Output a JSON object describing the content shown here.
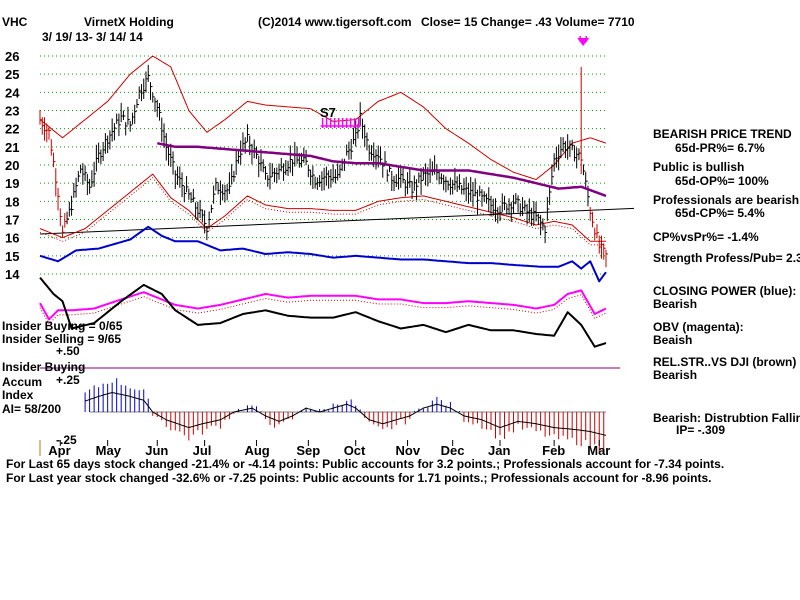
{
  "header": {
    "ticker": "VHC",
    "company": "VirnetX Holding",
    "date_range": "3/ 19/ 13- 3/ 14/ 14",
    "source": "(C)2014 www.tigersoft.com",
    "quote": "Close=  15  Change= .43 Volume= 7710"
  },
  "signal_label": "S7",
  "left_labels": {
    "insider_buying_line1": "Insider Buying = 0/65",
    "insider_selling": "Insider Selling = 9/65",
    "plus_50": "+.50",
    "insider_buying": "Insider Buying",
    "accum": "Accum",
    "plus_25": "+.25",
    "index": "Index",
    "ai": "AI= 58/200",
    "minus_25": "-.25"
  },
  "right_panel": {
    "trend_title": "BEARISH PRICE TREND",
    "pr": "65d-PR%= 6.7%",
    "public": "Public is bullish",
    "op": "65d-OP%= 100%",
    "professionals": "Professionals are bearish",
    "cp": "65d-CP%= 5.4%",
    "cpvspr": "CP%vsPr%= -1.4%",
    "strength": "Strength Profess/Pub= 2.3",
    "closing_power": "CLOSING POWER (blue):",
    "closing_power_val": "Bearish",
    "obv": "OBV (magenta):",
    "obv_val": "Beaish",
    "relstr": "REL.STR..VS DJI (brown)",
    "relstr_val": "Bearish",
    "dist": "Bearish: Distrubtion Falling",
    "ip": "IP= -.309"
  },
  "footer": {
    "line1": "For Last 65 days stock changed -21.4% or -4.14 points:  Public accounts for  3.2 points.;  Professionals account for -7.34 points.",
    "line2": "For Last year stock changed -32.6% or -7.25 points:  Public accounts for  1.71 points.;  Professionals account for -8.96 points."
  },
  "colors": {
    "price_bars": "#000000",
    "bollinger": "#cc0000",
    "moving_avg": "#800080",
    "closing_power": "#0000cc",
    "obv": "#ff00ff",
    "relstr": "#000000",
    "accum_pos": "#0000cc",
    "accum_neg": "#cc0000",
    "grid": "#00a000",
    "trendline": "#000000"
  },
  "chart_data": {
    "type": "line",
    "ylim": [
      13,
      27
    ],
    "yticks": [
      14,
      15,
      16,
      17,
      18,
      19,
      20,
      21,
      22,
      23,
      24,
      25,
      26
    ],
    "month_labels": [
      "Apr",
      "May",
      "Jun",
      "Jul",
      "Aug",
      "Sep",
      "Oct",
      "Nov",
      "Dec",
      "Jan",
      "Feb",
      "Mar"
    ],
    "month_index": [
      9,
      30,
      52,
      73,
      96,
      119,
      140,
      163,
      183,
      204,
      228,
      248
    ],
    "n_bars": 252,
    "price_keypoints": [
      [
        0,
        22.5
      ],
      [
        4,
        21.8
      ],
      [
        8,
        18.5
      ],
      [
        10,
        16.2
      ],
      [
        14,
        17.8
      ],
      [
        18,
        19.8
      ],
      [
        22,
        18.8
      ],
      [
        26,
        20.5
      ],
      [
        30,
        21.5
      ],
      [
        36,
        22.6
      ],
      [
        40,
        22.2
      ],
      [
        44,
        24.0
      ],
      [
        48,
        24.8
      ],
      [
        52,
        23.2
      ],
      [
        56,
        21.0
      ],
      [
        60,
        19.5
      ],
      [
        66,
        18.3
      ],
      [
        70,
        17.5
      ],
      [
        74,
        16.6
      ],
      [
        78,
        18.8
      ],
      [
        84,
        18.6
      ],
      [
        88,
        20.6
      ],
      [
        92,
        21.4
      ],
      [
        97,
        20.3
      ],
      [
        100,
        19.3
      ],
      [
        106,
        19.7
      ],
      [
        112,
        20.3
      ],
      [
        118,
        20.1
      ],
      [
        122,
        19.2
      ],
      [
        127,
        19.4
      ],
      [
        132,
        19.3
      ],
      [
        136,
        20.6
      ],
      [
        140,
        21.5
      ],
      [
        142,
        22.6
      ],
      [
        146,
        20.9
      ],
      [
        150,
        20.6
      ],
      [
        156,
        19.3
      ],
      [
        160,
        19.2
      ],
      [
        165,
        18.7
      ],
      [
        170,
        19.4
      ],
      [
        176,
        19.6
      ],
      [
        182,
        19.0
      ],
      [
        188,
        18.6
      ],
      [
        194,
        18.3
      ],
      [
        200,
        17.8
      ],
      [
        204,
        17.6
      ],
      [
        210,
        18.0
      ],
      [
        216,
        17.4
      ],
      [
        220,
        17.1
      ],
      [
        224,
        16.5
      ],
      [
        228,
        20.3
      ],
      [
        232,
        21.1
      ],
      [
        236,
        20.8
      ],
      [
        240,
        20.4
      ],
      [
        244,
        17.5
      ],
      [
        248,
        15.5
      ],
      [
        251,
        15.0
      ]
    ],
    "ma_keypoints": [
      [
        52,
        21.2
      ],
      [
        60,
        21.0
      ],
      [
        70,
        21.0
      ],
      [
        80,
        20.9
      ],
      [
        90,
        20.8
      ],
      [
        100,
        20.7
      ],
      [
        110,
        20.6
      ],
      [
        120,
        20.5
      ],
      [
        130,
        20.2
      ],
      [
        140,
        20.1
      ],
      [
        150,
        20.1
      ],
      [
        160,
        19.9
      ],
      [
        170,
        19.7
      ],
      [
        180,
        19.7
      ],
      [
        190,
        19.7
      ],
      [
        200,
        19.5
      ],
      [
        210,
        19.3
      ],
      [
        220,
        19.0
      ],
      [
        230,
        18.7
      ],
      [
        240,
        18.8
      ],
      [
        251,
        18.3
      ]
    ],
    "upper_band_keypoints": [
      [
        0,
        22.5
      ],
      [
        10,
        21.5
      ],
      [
        20,
        22.5
      ],
      [
        30,
        23.5
      ],
      [
        40,
        25.0
      ],
      [
        50,
        26.0
      ],
      [
        58,
        25.4
      ],
      [
        66,
        23.0
      ],
      [
        74,
        21.8
      ],
      [
        82,
        22.5
      ],
      [
        92,
        23.5
      ],
      [
        100,
        23.3
      ],
      [
        110,
        23.2
      ],
      [
        120,
        23.1
      ],
      [
        130,
        22.4
      ],
      [
        140,
        22.5
      ],
      [
        150,
        23.5
      ],
      [
        160,
        24.0
      ],
      [
        170,
        23.2
      ],
      [
        180,
        22.0
      ],
      [
        190,
        21.2
      ],
      [
        200,
        20.3
      ],
      [
        210,
        19.6
      ],
      [
        220,
        19.2
      ],
      [
        228,
        20.0
      ],
      [
        236,
        21.2
      ],
      [
        244,
        21.5
      ],
      [
        251,
        21.2
      ]
    ],
    "lower_band_keypoints": [
      [
        0,
        16.5
      ],
      [
        10,
        16.0
      ],
      [
        20,
        16.5
      ],
      [
        30,
        17.5
      ],
      [
        40,
        18.5
      ],
      [
        50,
        19.5
      ],
      [
        58,
        18.2
      ],
      [
        66,
        17.5
      ],
      [
        74,
        16.5
      ],
      [
        82,
        17.2
      ],
      [
        92,
        18.3
      ],
      [
        100,
        17.8
      ],
      [
        110,
        17.6
      ],
      [
        120,
        17.6
      ],
      [
        130,
        17.5
      ],
      [
        140,
        17.5
      ],
      [
        150,
        18.0
      ],
      [
        160,
        18.2
      ],
      [
        170,
        18.3
      ],
      [
        180,
        18.0
      ],
      [
        190,
        17.7
      ],
      [
        200,
        17.4
      ],
      [
        210,
        17.1
      ],
      [
        220,
        16.7
      ],
      [
        228,
        16.9
      ],
      [
        236,
        16.7
      ],
      [
        244,
        15.8
      ],
      [
        251,
        15.8
      ]
    ],
    "trendline": [
      [
        0,
        16.2
      ],
      [
        251,
        17.5
      ]
    ],
    "signal_index": 128,
    "spike_index": 240,
    "closing_power_keypoints": [
      [
        0,
        15.0
      ],
      [
        8,
        14.7
      ],
      [
        16,
        15.3
      ],
      [
        26,
        15.4
      ],
      [
        40,
        15.9
      ],
      [
        48,
        16.6
      ],
      [
        54,
        16.1
      ],
      [
        60,
        15.8
      ],
      [
        70,
        15.8
      ],
      [
        80,
        15.3
      ],
      [
        90,
        15.4
      ],
      [
        100,
        15.1
      ],
      [
        110,
        15.2
      ],
      [
        120,
        15.1
      ],
      [
        130,
        14.9
      ],
      [
        140,
        15.0
      ],
      [
        150,
        14.9
      ],
      [
        160,
        14.8
      ],
      [
        170,
        14.8
      ],
      [
        180,
        14.7
      ],
      [
        190,
        14.6
      ],
      [
        200,
        14.6
      ],
      [
        210,
        14.5
      ],
      [
        222,
        14.4
      ],
      [
        230,
        14.4
      ],
      [
        236,
        14.7
      ],
      [
        240,
        14.3
      ],
      [
        244,
        14.7
      ],
      [
        248,
        13.6
      ],
      [
        251,
        14.1
      ]
    ],
    "obv_keypoints": [
      [
        0,
        12.4
      ],
      [
        4,
        11.5
      ],
      [
        8,
        12.0
      ],
      [
        14,
        12.0
      ],
      [
        24,
        12.1
      ],
      [
        36,
        12.6
      ],
      [
        46,
        13.0
      ],
      [
        54,
        12.6
      ],
      [
        60,
        12.3
      ],
      [
        70,
        12.1
      ],
      [
        80,
        12.3
      ],
      [
        90,
        12.6
      ],
      [
        100,
        12.9
      ],
      [
        110,
        12.7
      ],
      [
        120,
        12.8
      ],
      [
        130,
        12.8
      ],
      [
        140,
        12.8
      ],
      [
        150,
        12.6
      ],
      [
        160,
        12.6
      ],
      [
        170,
        12.4
      ],
      [
        180,
        12.4
      ],
      [
        190,
        12.5
      ],
      [
        200,
        12.4
      ],
      [
        210,
        12.3
      ],
      [
        220,
        12.1
      ],
      [
        228,
        12.3
      ],
      [
        234,
        12.9
      ],
      [
        240,
        13.1
      ],
      [
        246,
        11.8
      ],
      [
        251,
        12.1
      ]
    ],
    "relstr_keypoints": [
      [
        0,
        13.8
      ],
      [
        6,
        12.9
      ],
      [
        10,
        12.5
      ],
      [
        14,
        11.0
      ],
      [
        24,
        11.3
      ],
      [
        36,
        12.5
      ],
      [
        46,
        13.4
      ],
      [
        54,
        12.9
      ],
      [
        60,
        12.0
      ],
      [
        70,
        11.2
      ],
      [
        80,
        11.3
      ],
      [
        90,
        11.8
      ],
      [
        100,
        12.0
      ],
      [
        110,
        11.7
      ],
      [
        120,
        11.6
      ],
      [
        130,
        11.6
      ],
      [
        140,
        11.9
      ],
      [
        150,
        11.4
      ],
      [
        160,
        11.0
      ],
      [
        170,
        11.2
      ],
      [
        180,
        10.8
      ],
      [
        190,
        11.2
      ],
      [
        200,
        10.9
      ],
      [
        210,
        10.9
      ],
      [
        220,
        10.7
      ],
      [
        228,
        10.6
      ],
      [
        234,
        11.9
      ],
      [
        240,
        11.2
      ],
      [
        246,
        10.0
      ],
      [
        251,
        10.2
      ]
    ],
    "accum_keypoints": [
      [
        0,
        -0.1
      ],
      [
        6,
        -0.05
      ],
      [
        10,
        0.05
      ],
      [
        16,
        0.1
      ],
      [
        26,
        0.2
      ],
      [
        32,
        0.25
      ],
      [
        40,
        0.2
      ],
      [
        46,
        0.15
      ],
      [
        50,
        0.0
      ],
      [
        56,
        -0.1
      ],
      [
        66,
        -0.2
      ],
      [
        72,
        -0.15
      ],
      [
        80,
        -0.1
      ],
      [
        86,
        0.0
      ],
      [
        94,
        0.05
      ],
      [
        100,
        -0.05
      ],
      [
        106,
        -0.12
      ],
      [
        112,
        -0.05
      ],
      [
        118,
        0.05
      ],
      [
        124,
        0.0
      ],
      [
        130,
        0.05
      ],
      [
        136,
        0.1
      ],
      [
        140,
        0.05
      ],
      [
        146,
        -0.1
      ],
      [
        152,
        -0.15
      ],
      [
        158,
        -0.1
      ],
      [
        164,
        -0.05
      ],
      [
        170,
        0.05
      ],
      [
        176,
        0.1
      ],
      [
        182,
        0.05
      ],
      [
        188,
        -0.05
      ],
      [
        196,
        -0.1
      ],
      [
        204,
        -0.2
      ],
      [
        212,
        -0.12
      ],
      [
        220,
        -0.15
      ],
      [
        228,
        -0.2
      ],
      [
        236,
        -0.22
      ],
      [
        244,
        -0.25
      ],
      [
        251,
        -0.3
      ]
    ]
  }
}
